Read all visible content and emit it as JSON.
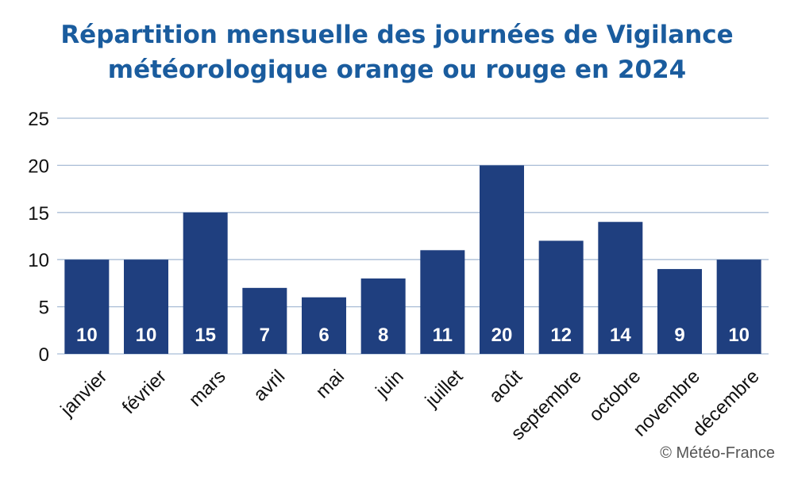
{
  "title_lines": [
    "Répartition mensuelle des journées de Vigilance",
    "météorologique orange ou rouge en 2024"
  ],
  "credit": "© Météo-France",
  "colors": {
    "title": "#1a5c9e",
    "bar": "#1f3f7f",
    "grid": "#a9bdd6",
    "label": "#ffffff"
  },
  "chart_data": {
    "type": "bar",
    "title": "Répartition mensuelle des journées de Vigilance météorologique orange ou rouge en 2024",
    "categories": [
      "janvier",
      "février",
      "mars",
      "avril",
      "mai",
      "juin",
      "juillet",
      "août",
      "septembre",
      "octobre",
      "novembre",
      "décembre"
    ],
    "values": [
      10,
      10,
      15,
      7,
      6,
      8,
      11,
      20,
      12,
      14,
      9,
      10
    ],
    "ylim": [
      0,
      25
    ],
    "yticks": [
      0,
      5,
      10,
      15,
      20,
      25
    ],
    "xlabel": "",
    "ylabel": "",
    "grid": true,
    "data_labels": true
  }
}
